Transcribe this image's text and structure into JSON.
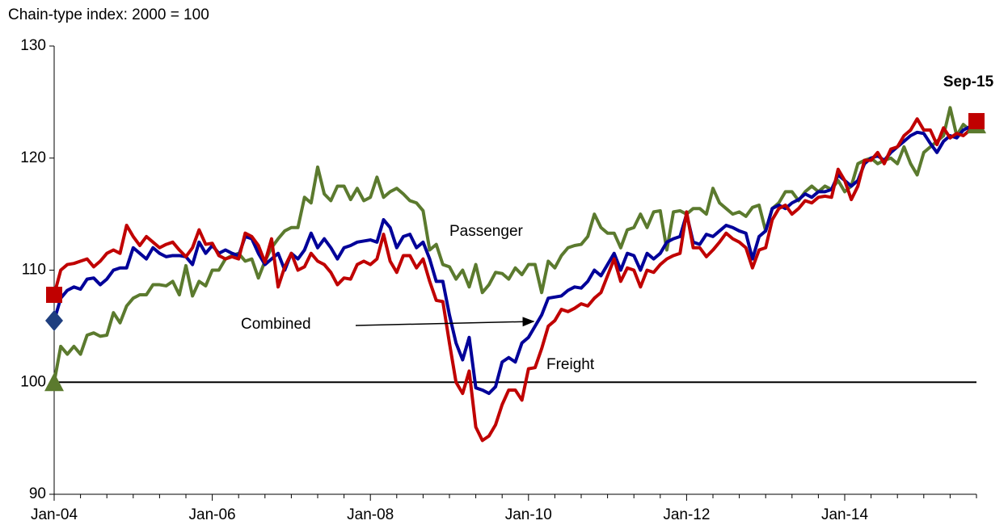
{
  "chart_data": {
    "type": "line",
    "ylabel": "Chain-type index: 2000 = 100",
    "categories": [
      "Jan-04",
      null,
      null,
      null,
      null,
      null,
      null,
      null,
      null,
      null,
      null,
      null,
      null,
      null,
      null,
      null,
      null,
      null,
      null,
      null,
      null,
      null,
      null,
      null,
      "Jan-06",
      null,
      null,
      null,
      null,
      null,
      null,
      null,
      null,
      null,
      null,
      null,
      null,
      null,
      null,
      null,
      null,
      null,
      null,
      null,
      null,
      null,
      null,
      null,
      "Jan-08",
      null,
      null,
      null,
      null,
      null,
      null,
      null,
      null,
      null,
      null,
      null,
      null,
      null,
      null,
      null,
      null,
      null,
      null,
      null,
      null,
      null,
      null,
      null,
      "Jan-10",
      null,
      null,
      null,
      null,
      null,
      null,
      null,
      null,
      null,
      null,
      null,
      null,
      null,
      null,
      null,
      null,
      null,
      null,
      null,
      null,
      null,
      null,
      null,
      "Jan-12",
      null,
      null,
      null,
      null,
      null,
      null,
      null,
      null,
      null,
      null,
      null,
      null,
      null,
      null,
      null,
      null,
      null,
      null,
      null,
      null,
      null,
      null,
      null,
      "Jan-14",
      null,
      null,
      null,
      null,
      null,
      null,
      null,
      null,
      null,
      null,
      null,
      null,
      null,
      null,
      null,
      null,
      null,
      null,
      null,
      null
    ],
    "series": [
      {
        "name": "Passenger",
        "color": "#5b7a2e",
        "marker": "triangle",
        "end_marker": true,
        "values": [
          100.0,
          103.2,
          102.5,
          103.2,
          102.5,
          104.2,
          104.4,
          104.1,
          104.2,
          106.2,
          105.3,
          106.8,
          107.5,
          107.8,
          107.8,
          108.7,
          108.7,
          108.6,
          109.0,
          107.8,
          110.4,
          107.7,
          109.0,
          108.6,
          110.0,
          110.0,
          111.0,
          111.3,
          111.5,
          110.8,
          111.0,
          109.3,
          110.8,
          112.0,
          112.8,
          113.5,
          113.8,
          113.8,
          116.5,
          116.0,
          119.2,
          116.8,
          116.2,
          117.5,
          117.5,
          116.3,
          117.3,
          116.2,
          116.5,
          118.3,
          116.5,
          117.0,
          117.3,
          116.8,
          116.2,
          116.0,
          115.3,
          111.8,
          112.3,
          110.5,
          110.3,
          109.2,
          110.0,
          108.5,
          110.5,
          108.0,
          108.7,
          109.8,
          109.7,
          109.2,
          110.2,
          109.6,
          110.5,
          110.5,
          108.0,
          110.8,
          110.2,
          111.3,
          112.0,
          112.2,
          112.3,
          113.0,
          115.0,
          113.8,
          113.3,
          113.3,
          112.0,
          113.6,
          113.8,
          115.0,
          113.8,
          115.2,
          115.3,
          111.8,
          115.2,
          115.3,
          115.0,
          115.5,
          115.5,
          115.0,
          117.3,
          116.0,
          115.5,
          115.0,
          115.2,
          114.8,
          115.6,
          115.8,
          113.5,
          115.5,
          116.0,
          117.0,
          117.0,
          116.2,
          117.0,
          117.5,
          117.0,
          117.5,
          117.2,
          118.0,
          117.0,
          117.5,
          119.5,
          119.8,
          120.0,
          119.5,
          119.8,
          120.0,
          119.5,
          121.0,
          119.5,
          118.5,
          120.5,
          121.0,
          121.5,
          122.0,
          124.5,
          122.0,
          123.0,
          122.5,
          123.0
        ]
      },
      {
        "name": "Combined",
        "color": "#000099",
        "marker": "diamond",
        "end_marker": false,
        "values": [
          105.5,
          107.5,
          108.2,
          108.5,
          108.3,
          109.2,
          109.3,
          108.7,
          109.2,
          110.0,
          110.2,
          110.2,
          112.0,
          111.5,
          111.0,
          112.0,
          111.5,
          111.2,
          111.3,
          111.3,
          111.2,
          110.5,
          112.5,
          111.5,
          112.2,
          111.5,
          111.8,
          111.5,
          111.3,
          113.0,
          112.8,
          111.5,
          110.5,
          111.0,
          111.5,
          110.0,
          111.5,
          111.0,
          111.8,
          113.3,
          112.0,
          112.8,
          112.0,
          111.0,
          112.0,
          112.2,
          112.5,
          112.6,
          112.7,
          112.5,
          114.5,
          113.8,
          112.0,
          113.0,
          113.2,
          112.0,
          112.5,
          111.0,
          109.0,
          109.0,
          106.0,
          103.5,
          102.0,
          104.0,
          99.5,
          99.3,
          99.0,
          99.6,
          101.8,
          102.2,
          101.8,
          103.5,
          104.0,
          105.0,
          106.0,
          107.5,
          107.6,
          107.7,
          108.2,
          108.5,
          108.4,
          109.0,
          110.0,
          109.5,
          110.5,
          111.5,
          110.0,
          111.5,
          111.3,
          110.0,
          111.5,
          111.0,
          111.5,
          112.5,
          112.8,
          113.0,
          115.0,
          112.5,
          112.3,
          113.2,
          113.0,
          113.5,
          114.0,
          113.8,
          113.5,
          113.3,
          111.0,
          113.0,
          113.5,
          115.5,
          115.8,
          115.5,
          116.0,
          116.3,
          116.8,
          116.5,
          117.0,
          117.0,
          117.2,
          118.5,
          118.0,
          117.5,
          118.0,
          119.5,
          120.0,
          120.2,
          119.8,
          120.5,
          121.0,
          121.5,
          122.0,
          122.3,
          122.2,
          121.3,
          120.5,
          121.5,
          122.0,
          121.8,
          122.5,
          122.8,
          123.0
        ]
      },
      {
        "name": "Freight",
        "color": "#c00000",
        "marker": "square",
        "end_marker": true,
        "values": [
          107.8,
          110.0,
          110.5,
          110.6,
          110.8,
          111.0,
          110.3,
          110.8,
          111.5,
          111.8,
          111.5,
          114.0,
          113.0,
          112.2,
          113.0,
          112.5,
          112.0,
          112.3,
          112.5,
          111.8,
          111.2,
          112.0,
          113.6,
          112.3,
          112.4,
          111.3,
          111.0,
          111.2,
          111.0,
          113.3,
          113.0,
          112.2,
          110.7,
          112.8,
          108.5,
          110.3,
          111.5,
          110.0,
          110.3,
          111.5,
          110.8,
          110.5,
          109.8,
          108.7,
          109.3,
          109.2,
          110.5,
          110.8,
          110.5,
          111.0,
          113.2,
          110.8,
          109.8,
          111.3,
          111.3,
          110.2,
          111.0,
          109.0,
          107.3,
          107.2,
          103.5,
          100.0,
          99.0,
          101.0,
          96.0,
          94.8,
          95.2,
          96.2,
          98.0,
          99.3,
          99.3,
          98.4,
          101.2,
          101.3,
          103.0,
          105.0,
          105.5,
          106.5,
          106.3,
          106.6,
          107.0,
          106.8,
          107.5,
          108.0,
          109.5,
          111.0,
          109.0,
          110.2,
          110.0,
          108.5,
          110.0,
          109.8,
          110.5,
          111.0,
          111.3,
          111.5,
          115.2,
          112.0,
          112.0,
          111.2,
          111.8,
          112.5,
          113.3,
          112.8,
          112.5,
          112.0,
          110.2,
          111.8,
          112.0,
          114.5,
          115.5,
          115.8,
          115.0,
          115.5,
          116.2,
          116.0,
          116.5,
          116.6,
          116.5,
          119.0,
          118.0,
          116.3,
          117.5,
          119.8,
          119.8,
          120.5,
          119.5,
          120.8,
          121.0,
          122.0,
          122.5,
          123.5,
          122.5,
          122.5,
          121.2,
          122.7,
          121.8,
          122.2,
          122.0,
          122.5,
          123.3
        ]
      }
    ],
    "ylim": [
      90,
      130
    ],
    "yticks": [
      90,
      100,
      110,
      120,
      130
    ],
    "reference_line": 100,
    "annotations": [
      "Passenger",
      "Combined",
      "Freight",
      "Sep-15"
    ],
    "legend": false
  }
}
